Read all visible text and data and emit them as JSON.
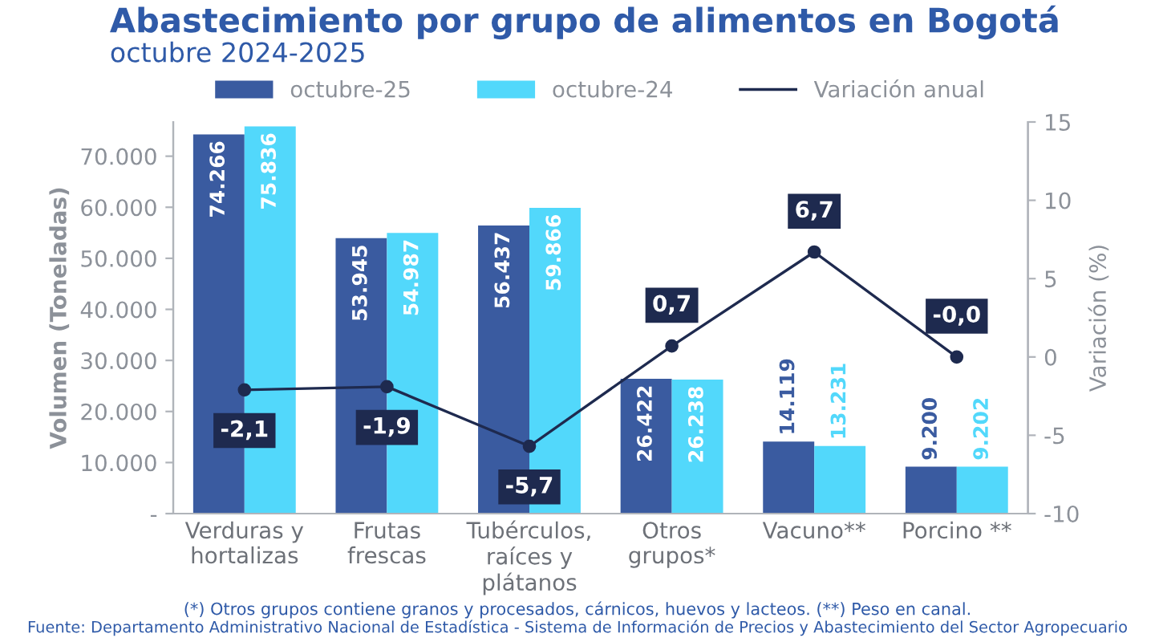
{
  "chart_data": {
    "type": "bar",
    "title": "Abastecimiento por grupo de alimentos en Bogotá",
    "subtitle": "octubre 2024-2025",
    "ylabel": "Volumen (Toneladas)",
    "y2label": "Variación (%)",
    "categories": [
      "Verduras y\nhortalizas",
      "Frutas\nfrescas",
      "Tubérculos,\nraíces y\nplátanos",
      "Otros\ngrupos*",
      "Vacuno**",
      "Porcino **"
    ],
    "series": [
      {
        "name": "octubre-25",
        "color": "#3a5ba0",
        "values": [
          74266,
          53945,
          56437,
          26422,
          14119,
          9200
        ],
        "value_labels": [
          "74.266",
          "53.945",
          "56.437",
          "26.422",
          "14.119",
          "9.200"
        ]
      },
      {
        "name": "octubre-24",
        "color": "#52d8fb",
        "values": [
          75836,
          54987,
          59866,
          26238,
          13231,
          9202
        ],
        "value_labels": [
          "75.836",
          "54.987",
          "59.866",
          "26.238",
          "13.231",
          "9.202"
        ]
      },
      {
        "name": "Variación anual",
        "type": "line",
        "axis": "y2",
        "color": "#1e2a4f",
        "marker": "circle",
        "values": [
          -2.1,
          -1.9,
          -5.7,
          0.7,
          6.7,
          -0.0
        ],
        "value_labels": [
          "-2,1",
          "-1,9",
          "-5,7",
          "0,7",
          "6,7",
          "-0,0"
        ]
      }
    ],
    "ylim": [
      0,
      76700
    ],
    "yticks": [
      {
        "value": 0,
        "label": "-"
      },
      {
        "value": 10000,
        "label": "10.000"
      },
      {
        "value": 20000,
        "label": "20.000"
      },
      {
        "value": 30000,
        "label": "30.000"
      },
      {
        "value": 40000,
        "label": "40.000"
      },
      {
        "value": 50000,
        "label": "50.000"
      },
      {
        "value": 60000,
        "label": "60.000"
      },
      {
        "value": 70000,
        "label": "70.000"
      }
    ],
    "y2lim": [
      -10,
      15
    ],
    "y2ticks": [
      -10,
      -5,
      0,
      5,
      10,
      15
    ],
    "legend": "top",
    "grid": false,
    "annotations": [
      "(*) Otros grupos contiene granos y procesados, cárnicos, huevos y lacteos. (**) Peso en canal.",
      "Fuente: Departamento Administrativo Nacional de Estadística - Sistema de Información de Precios y Abastecimiento del Sector Agropecuario"
    ]
  }
}
